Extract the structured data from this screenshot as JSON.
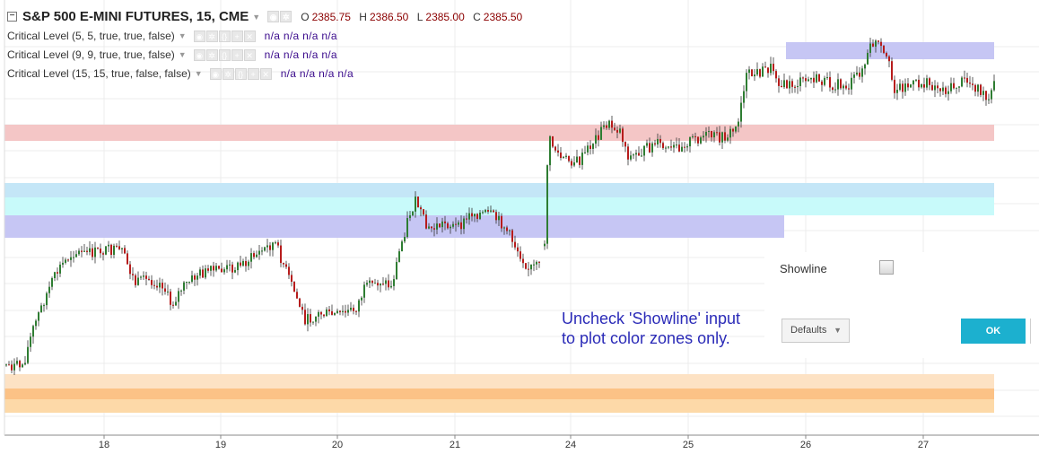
{
  "header": {
    "collapse_glyph": "−",
    "symbol_title": "S&P 500 E-MINI FUTURES, 15, CME",
    "ohlc": [
      {
        "k": "O",
        "v": "2385.75"
      },
      {
        "k": "H",
        "v": "2386.50"
      },
      {
        "k": "L",
        "v": "2385.00"
      },
      {
        "k": "C",
        "v": "2385.50"
      }
    ]
  },
  "indicators": [
    {
      "label": "Critical Level (5, 5, true, true, false)",
      "values": "n/a n/a n/a n/a"
    },
    {
      "label": "Critical Level (9, 9, true, true, false)",
      "values": "n/a n/a n/a n/a"
    },
    {
      "label": "Critical Level (15, 15, true, false, false)",
      "values": "n/a n/a n/a n/a"
    }
  ],
  "x_axis_labels": [
    "18",
    "19",
    "20",
    "21",
    "24",
    "25",
    "26",
    "27"
  ],
  "chart_data": {
    "type": "candlestick",
    "title": "S&P 500 E-MINI FUTURES, 15, CME",
    "x_ticks": [
      "18",
      "19",
      "20",
      "21",
      "24",
      "25",
      "26",
      "27"
    ],
    "y_labels_shown": false,
    "last_bar": {
      "open": 2385.75,
      "high": 2386.5,
      "low": 2385.0,
      "close": 2385.5
    },
    "colors": {
      "up": "#2e7d32",
      "down": "#b71c1c",
      "wick": "#333333"
    },
    "zones": [
      {
        "color": "#f4c6c6"
      },
      {
        "color": "#c4e6f7"
      },
      {
        "color": "#c8fafa"
      },
      {
        "color": "#c6c6f4"
      },
      {
        "color": "#c6c6f4"
      },
      {
        "color": "#fde2c4"
      },
      {
        "color": "#fcc286"
      }
    ],
    "price_path": [
      [
        0,
        0.855
      ],
      [
        10,
        0.86
      ],
      [
        20,
        0.855
      ],
      [
        30,
        0.77
      ],
      [
        45,
        0.68
      ],
      [
        60,
        0.61
      ],
      [
        75,
        0.57
      ],
      [
        90,
        0.575
      ],
      [
        110,
        0.565
      ],
      [
        130,
        0.57
      ],
      [
        145,
        0.65
      ],
      [
        160,
        0.64
      ],
      [
        175,
        0.65
      ],
      [
        185,
        0.705
      ],
      [
        195,
        0.665
      ],
      [
        215,
        0.625
      ],
      [
        240,
        0.615
      ],
      [
        260,
        0.605
      ],
      [
        280,
        0.575
      ],
      [
        300,
        0.545
      ],
      [
        310,
        0.6
      ],
      [
        320,
        0.66
      ],
      [
        335,
        0.745
      ],
      [
        350,
        0.725
      ],
      [
        370,
        0.73
      ],
      [
        390,
        0.715
      ],
      [
        400,
        0.665
      ],
      [
        420,
        0.64
      ],
      [
        430,
        0.66
      ],
      [
        440,
        0.56
      ],
      [
        450,
        0.475
      ],
      [
        458,
        0.44
      ],
      [
        470,
        0.515
      ],
      [
        490,
        0.495
      ],
      [
        505,
        0.51
      ],
      [
        520,
        0.47
      ],
      [
        540,
        0.475
      ],
      [
        555,
        0.5
      ],
      [
        570,
        0.56
      ],
      [
        583,
        0.61
      ],
      [
        600,
        0.605
      ],
      [
        605,
        0.28
      ],
      [
        620,
        0.335
      ],
      [
        640,
        0.34
      ],
      [
        655,
        0.29
      ],
      [
        670,
        0.245
      ],
      [
        685,
        0.26
      ],
      [
        695,
        0.33
      ],
      [
        710,
        0.315
      ],
      [
        725,
        0.295
      ],
      [
        740,
        0.315
      ],
      [
        760,
        0.29
      ],
      [
        780,
        0.275
      ],
      [
        800,
        0.28
      ],
      [
        815,
        0.255
      ],
      [
        820,
        0.19
      ],
      [
        825,
        0.125
      ],
      [
        840,
        0.115
      ],
      [
        855,
        0.1
      ],
      [
        865,
        0.15
      ],
      [
        880,
        0.145
      ],
      [
        900,
        0.13
      ],
      [
        920,
        0.145
      ],
      [
        940,
        0.15
      ],
      [
        958,
        0.095
      ],
      [
        965,
        0.045
      ],
      [
        972,
        0.04
      ],
      [
        985,
        0.1
      ],
      [
        990,
        0.155
      ],
      [
        1010,
        0.145
      ],
      [
        1030,
        0.145
      ],
      [
        1050,
        0.16
      ],
      [
        1070,
        0.135
      ],
      [
        1085,
        0.155
      ],
      [
        1095,
        0.195
      ],
      [
        1100,
        0.165
      ],
      [
        1104,
        0.12
      ],
      [
        1109,
        0.14
      ]
    ]
  },
  "dialog": {
    "showline_label": "Showline",
    "showline_checked": false,
    "defaults_label": "Defaults",
    "ok_label": "OK"
  },
  "annotation": {
    "line1": "Uncheck 'Showline' input",
    "line2": "to plot color zones only.",
    "arrow_color": "#28c4cf",
    "text_color": "#2b2bb8"
  }
}
